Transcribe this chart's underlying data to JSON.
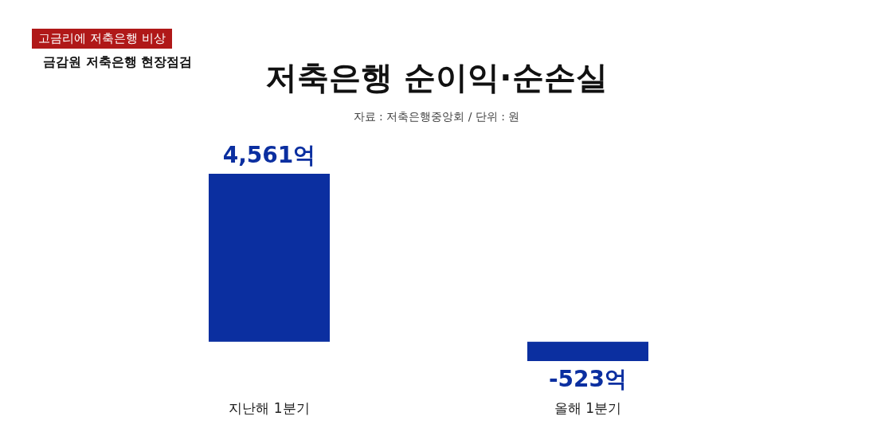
{
  "chart_data": {
    "type": "bar",
    "title": "저축은행 순이익·순손실",
    "subtitle": "자료 : 저축은행중앙회 / 단위 : 원",
    "annotations": [
      "고금리에 저축은행 비상",
      "금감원 저축은행 현장점검"
    ],
    "categories": [
      "지난해 1분기",
      "올해 1분기"
    ],
    "values": [
      4561,
      -523
    ],
    "value_labels": [
      "4,561억",
      "-523억"
    ],
    "color": "#0b2fa0"
  }
}
